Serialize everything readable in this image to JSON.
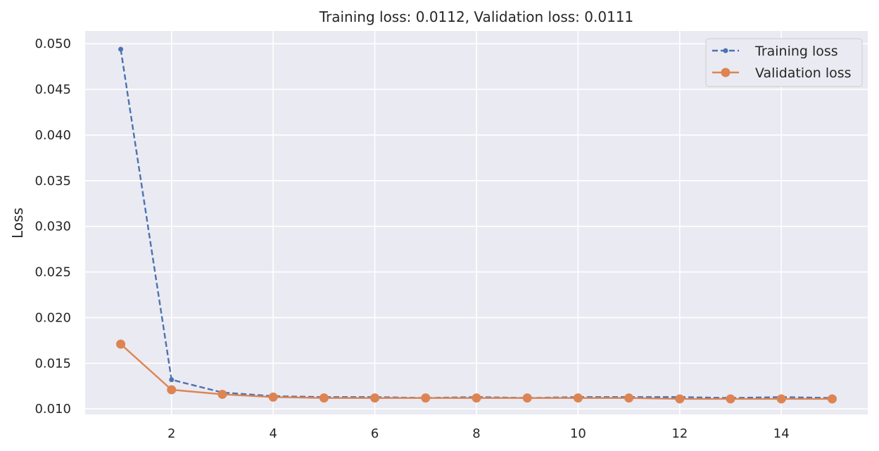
{
  "chart_data": {
    "type": "line",
    "title": "Training loss: 0.0112, Validation loss: 0.0111",
    "xlabel": "",
    "ylabel": "Loss",
    "xlim": [
      0.3,
      15.7
    ],
    "ylim": [
      0.0094,
      0.0514
    ],
    "xticks": [
      2,
      4,
      6,
      8,
      10,
      12,
      14
    ],
    "yticks": [
      0.01,
      0.015,
      0.02,
      0.025,
      0.03,
      0.035,
      0.04,
      0.045,
      0.05
    ],
    "ytick_labels": [
      "0.010",
      "0.015",
      "0.020",
      "0.025",
      "0.030",
      "0.035",
      "0.040",
      "0.045",
      "0.050"
    ],
    "grid": true,
    "legend_position": "top-right",
    "x": [
      1,
      2,
      3,
      4,
      5,
      6,
      7,
      8,
      9,
      10,
      11,
      12,
      13,
      14,
      15
    ],
    "series": [
      {
        "name": "Training loss",
        "color": "#4c72b0",
        "linestyle": "dashed",
        "marker": "small-dot",
        "values": [
          0.0494,
          0.0132,
          0.0118,
          0.0114,
          0.0113,
          0.0113,
          0.0112,
          0.0113,
          0.0112,
          0.0113,
          0.0113,
          0.0113,
          0.0112,
          0.0113,
          0.0112
        ]
      },
      {
        "name": "Validation loss",
        "color": "#dd8452",
        "linestyle": "solid",
        "marker": "large-dot",
        "values": [
          0.0171,
          0.0121,
          0.0116,
          0.0113,
          0.0112,
          0.0112,
          0.0112,
          0.0112,
          0.0112,
          0.0112,
          0.0112,
          0.0111,
          0.0111,
          0.0111,
          0.0111
        ]
      }
    ]
  }
}
